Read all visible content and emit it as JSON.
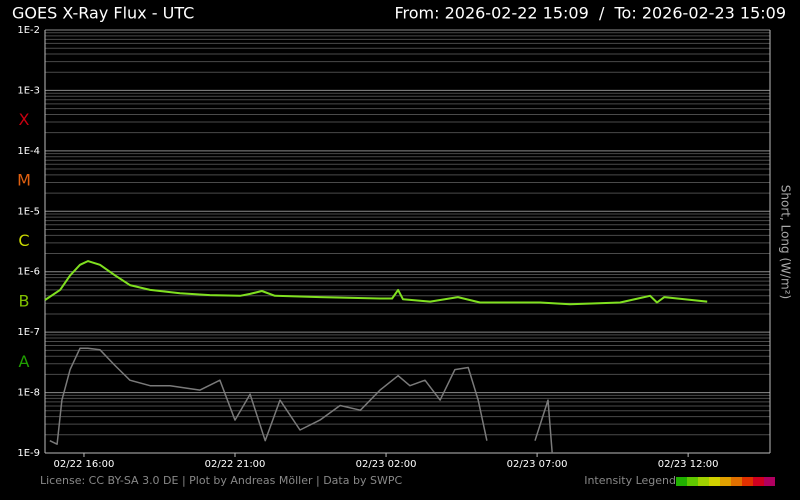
{
  "chart_data": {
    "type": "line",
    "title": "GOES X-Ray Flux - UTC",
    "range_label": "From: 2026-02-22 15:09  /  To: 2026-02-23 15:09",
    "y_label": "Short, Long (W/m²)",
    "footer": "License: CC BY-SA 3.0 DE | Plot by Andreas Möller | Data by SWPC",
    "intensity_legend": "Intensity Legend",
    "intensity_colors": [
      "#20b000",
      "#60c800",
      "#a0d000",
      "#d0d000",
      "#e0a000",
      "#e07000",
      "#e03000",
      "#d00020",
      "#b00060"
    ],
    "log_scale": true,
    "grid": true,
    "minor_grid": true,
    "xlim": [
      14.71,
      38.71
    ],
    "ylim": [
      1e-09,
      0.01
    ],
    "xticks": [
      {
        "value": 16,
        "label": "02/22 16:00"
      },
      {
        "value": 21,
        "label": "02/22 21:00"
      },
      {
        "value": 26,
        "label": "02/23 02:00"
      },
      {
        "value": 31,
        "label": "02/23 07:00"
      },
      {
        "value": 36,
        "label": "02/23 12:00"
      }
    ],
    "yticks": [
      {
        "value": 1e-09,
        "label": "1E-9"
      },
      {
        "value": 1e-08,
        "label": "1E-8"
      },
      {
        "value": 1e-07,
        "label": "1E-7"
      },
      {
        "value": 1e-06,
        "label": "1E-6"
      },
      {
        "value": 1e-05,
        "label": "1E-5"
      },
      {
        "value": 0.0001,
        "label": "1E-4"
      },
      {
        "value": 0.001,
        "label": "1E-3"
      },
      {
        "value": 0.01,
        "label": "1E-2"
      }
    ],
    "flare_classes": [
      {
        "label": "X",
        "value": 0.0001,
        "color": "#c80010"
      },
      {
        "label": "M",
        "value": 1e-05,
        "color": "#e06010"
      },
      {
        "label": "C",
        "value": 1e-06,
        "color": "#c8d800"
      },
      {
        "label": "B",
        "value": 1e-07,
        "color": "#80c000"
      },
      {
        "label": "A",
        "value": 1e-08,
        "color": "#20a000"
      }
    ],
    "series": [
      {
        "color": "#7a7a7a",
        "x": [
          14.87,
          15.11,
          15.27,
          15.54,
          15.87,
          16.13,
          16.53,
          17.03,
          17.52,
          18.19,
          18.85,
          19.84,
          20.5,
          21.0,
          21.5,
          22.0,
          22.49,
          23.15,
          23.81,
          24.48,
          25.15,
          25.8,
          26.4,
          26.79,
          27.29,
          27.79,
          28.28,
          28.72,
          29.05,
          29.34,
          29.8,
          30.93,
          31.36,
          31.5
        ],
        "values": [
          1.6e-09,
          1.4e-09,
          7.5e-09,
          2.4e-08,
          5.4e-08,
          5.4e-08,
          5.1e-08,
          2.8e-08,
          1.6e-08,
          1.3e-08,
          1.3e-08,
          1.1e-08,
          1.6e-08,
          3.5e-09,
          9.4e-09,
          1.6e-09,
          7.5e-09,
          2.4e-09,
          3.5e-09,
          6.1e-09,
          5.1e-09,
          1.1e-08,
          1.9e-08,
          1.3e-08,
          1.6e-08,
          7.5e-09,
          2.4e-08,
          2.6e-08,
          7.5e-09,
          1.6e-09,
          null,
          1.6e-09,
          7.5e-09,
          1e-09
        ]
      },
      {
        "color": "#80e020",
        "x": [
          14.71,
          15.21,
          15.54,
          15.87,
          16.13,
          16.53,
          17.03,
          17.52,
          18.19,
          19.18,
          20.17,
          21.17,
          21.5,
          21.89,
          22.32,
          23.81,
          25.8,
          26.2,
          26.4,
          26.56,
          27.46,
          28.38,
          29.11,
          31.1,
          32.09,
          33.75,
          34.74,
          34.97,
          35.21,
          36.63
        ],
        "values": [
          3.4e-07,
          5e-07,
          8.7e-07,
          1.3e-06,
          1.5e-06,
          1.3e-06,
          8.7e-07,
          6e-07,
          5e-07,
          4.4e-07,
          4.1e-07,
          4e-07,
          4.3e-07,
          4.8e-07,
          4e-07,
          3.8e-07,
          3.6e-07,
          3.6e-07,
          5e-07,
          3.5e-07,
          3.2e-07,
          3.8e-07,
          3.1e-07,
          3.1e-07,
          2.9e-07,
          3.1e-07,
          4e-07,
          3.1e-07,
          3.8e-07,
          3.2e-07
        ]
      }
    ]
  }
}
